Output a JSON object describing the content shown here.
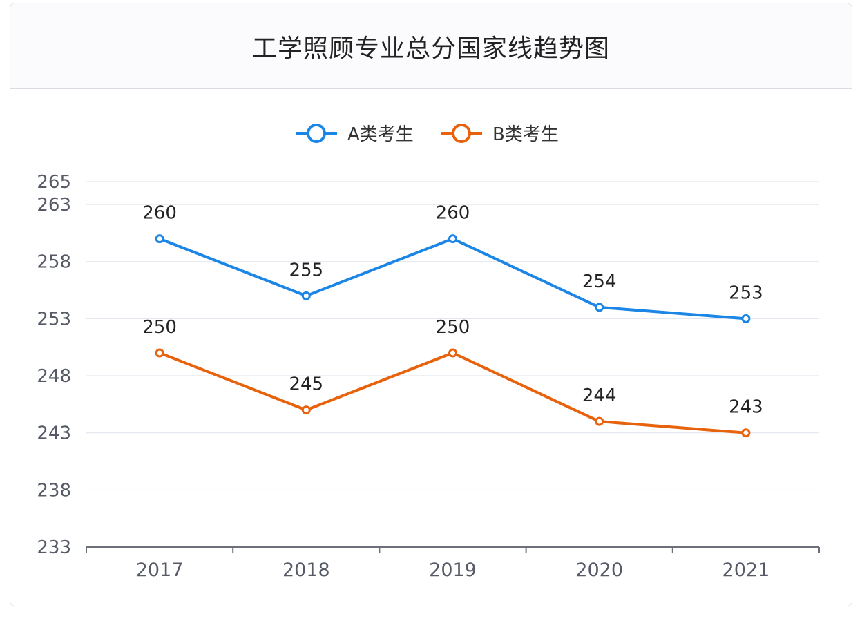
{
  "chart_data": {
    "type": "line",
    "title": "工学照顾专业总分国家线趋势图",
    "categories": [
      "2017",
      "2018",
      "2019",
      "2020",
      "2021"
    ],
    "yticks": [
      233,
      238,
      243,
      248,
      253,
      258,
      263,
      265
    ],
    "ylim": [
      233,
      265
    ],
    "grid": true,
    "legend_position": "top-center",
    "series": [
      {
        "name": "A类考生",
        "values": [
          260,
          255,
          260,
          254,
          253
        ],
        "color": "#1c86e6"
      },
      {
        "name": "B类考生",
        "values": [
          250,
          245,
          250,
          244,
          243
        ],
        "color": "#e8620c"
      }
    ]
  }
}
